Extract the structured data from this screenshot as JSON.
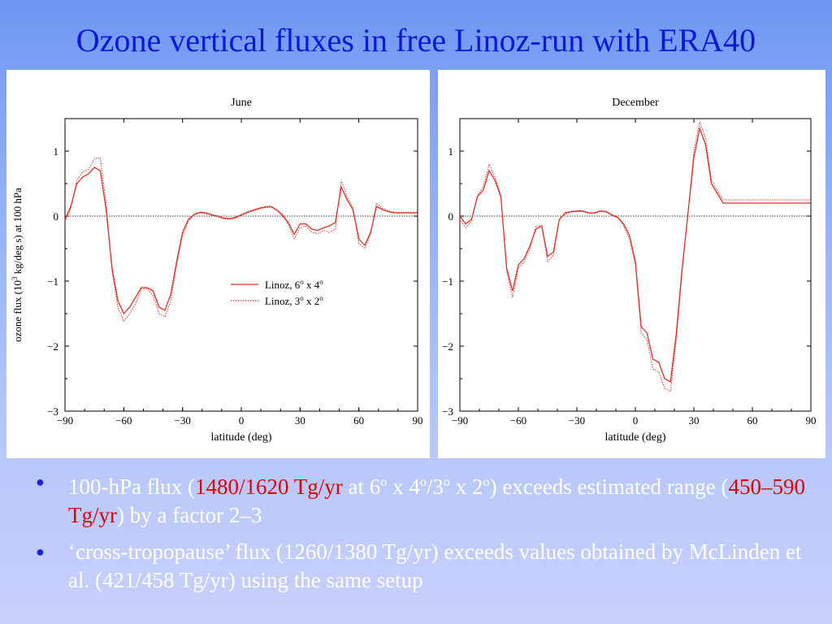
{
  "slide": {
    "title": "Ozone vertical fluxes in free Linoz-run with ERA40"
  },
  "bullets": [
    {
      "p1": "100-hPa flux (",
      "p1_red": "1480/1620 Tg/yr",
      "p2": " at 6",
      "p2_sup": "o",
      "p3": " x 4",
      "p3_sup": "o",
      "p4": "/3",
      "p4_sup": "o",
      "p5": " x 2",
      "p5_sup": "o",
      "p6": ") exceeds estimated range (",
      "p6_red": "450–590 Tg/yr",
      "p7": ") by a factor 2–3"
    },
    {
      "text": "‘cross-tropopause’ flux (1260/1380 Tg/yr) exceeds values obtained by McLinden et al. (421/458 Tg/yr) using the same setup"
    }
  ],
  "colors": {
    "title": "#0d17d8",
    "highlight": "#e00000",
    "series": "#d9342b",
    "bullet_dot": "#1a23d6"
  },
  "chart_data": [
    {
      "type": "line",
      "title": "June",
      "xlabel": "latitude (deg)",
      "ylabel_parts": {
        "a": "ozone flux (10",
        "sup": "3",
        "b": " kg/deg s) at 100 hPa"
      },
      "xlim": [
        -90,
        90
      ],
      "ylim": [
        -3,
        1.5
      ],
      "xticks": [
        -90,
        -60,
        -30,
        0,
        30,
        60,
        90
      ],
      "xtick_labels": [
        "−90",
        "−60",
        "−30",
        "0",
        "30",
        "60",
        "90"
      ],
      "yticks": [
        -3,
        -2,
        -1,
        0,
        1
      ],
      "ytick_labels": [
        "−3",
        "−2",
        "−1",
        "0",
        "1"
      ],
      "zero_line": true,
      "legend": {
        "placement": "middle-right",
        "entries": [
          {
            "base": "Linoz, 6",
            "s1": "o",
            "mid": " x 4",
            "s2": "o",
            "style": "solid"
          },
          {
            "base": "Linoz, 3",
            "s1": "o",
            "mid": " x 2",
            "s2": "o",
            "style": "dotted"
          }
        ]
      },
      "series": [
        {
          "style": "solid",
          "x": [
            -90,
            -87,
            -84,
            -81,
            -78,
            -75,
            -72,
            -69,
            -66,
            -63,
            -60,
            -57,
            -54,
            -51,
            -48,
            -45,
            -42,
            -39,
            -36,
            -33,
            -30,
            -27,
            -24,
            -21,
            -18,
            -15,
            -12,
            -9,
            -6,
            -3,
            0,
            3,
            6,
            9,
            12,
            15,
            18,
            21,
            24,
            27,
            30,
            33,
            36,
            39,
            42,
            45,
            48,
            51,
            54,
            57,
            60,
            63,
            66,
            69,
            72,
            75,
            78,
            81,
            84,
            87,
            90
          ],
          "y": [
            -0.05,
            0.15,
            0.5,
            0.6,
            0.65,
            0.75,
            0.7,
            0.1,
            -0.8,
            -1.3,
            -1.5,
            -1.4,
            -1.25,
            -1.1,
            -1.1,
            -1.15,
            -1.4,
            -1.45,
            -1.2,
            -0.7,
            -0.25,
            -0.05,
            0.03,
            0.06,
            0.05,
            0.02,
            0,
            -0.03,
            -0.04,
            -0.02,
            0.02,
            0.06,
            0.09,
            0.12,
            0.14,
            0.15,
            0.1,
            0.02,
            -0.1,
            -0.28,
            -0.12,
            -0.12,
            -0.2,
            -0.22,
            -0.18,
            -0.15,
            -0.1,
            0.45,
            0.25,
            0.1,
            -0.35,
            -0.45,
            -0.25,
            0.15,
            0.1,
            0.07,
            0.05,
            0.05,
            0.05,
            0.05,
            0.05
          ]
        },
        {
          "style": "dotted",
          "x": [
            -90,
            -87,
            -84,
            -81,
            -78,
            -75,
            -72,
            -69,
            -66,
            -63,
            -60,
            -57,
            -54,
            -51,
            -48,
            -45,
            -42,
            -39,
            -36,
            -33,
            -30,
            -27,
            -24,
            -21,
            -18,
            -15,
            -12,
            -9,
            -6,
            -3,
            0,
            3,
            6,
            9,
            12,
            15,
            18,
            21,
            24,
            27,
            30,
            33,
            36,
            39,
            42,
            45,
            48,
            51,
            54,
            57,
            60,
            63,
            66,
            69,
            72,
            75,
            78,
            81,
            84,
            87,
            90
          ],
          "y": [
            -0.08,
            0.12,
            0.55,
            0.68,
            0.72,
            0.88,
            0.9,
            0.2,
            -0.85,
            -1.4,
            -1.62,
            -1.5,
            -1.35,
            -1.12,
            -1.12,
            -1.22,
            -1.5,
            -1.55,
            -1.3,
            -0.75,
            -0.3,
            -0.08,
            0.02,
            0.05,
            0.04,
            0.01,
            -0.01,
            -0.04,
            -0.05,
            -0.03,
            0.01,
            0.05,
            0.08,
            0.11,
            0.13,
            0.14,
            0.09,
            0,
            -0.13,
            -0.35,
            -0.18,
            -0.15,
            -0.25,
            -0.27,
            -0.22,
            -0.25,
            -0.2,
            0.55,
            0.3,
            0.12,
            -0.42,
            -0.5,
            -0.28,
            0.2,
            0.12,
            0.08,
            0.06,
            0.06,
            0.06,
            0.06,
            0.06
          ]
        }
      ]
    },
    {
      "type": "line",
      "title": "December",
      "xlabel": "latitude (deg)",
      "xlim": [
        -90,
        90
      ],
      "ylim": [
        -3,
        1.5
      ],
      "xticks": [
        -90,
        -60,
        -30,
        0,
        30,
        60,
        90
      ],
      "xtick_labels": [
        "−90",
        "−60",
        "−30",
        "0",
        "30",
        "60",
        "90"
      ],
      "yticks": [
        -3,
        -2,
        -1,
        0,
        1
      ],
      "ytick_labels": [
        "−3",
        "−2",
        "−1",
        "0",
        "1"
      ],
      "zero_line": true,
      "series": [
        {
          "style": "solid",
          "x": [
            -90,
            -87,
            -84,
            -81,
            -78,
            -75,
            -72,
            -69,
            -66,
            -63,
            -60,
            -57,
            -54,
            -51,
            -48,
            -45,
            -42,
            -39,
            -36,
            -33,
            -30,
            -27,
            -24,
            -21,
            -18,
            -15,
            -12,
            -9,
            -6,
            -3,
            0,
            3,
            6,
            9,
            12,
            15,
            18,
            21,
            24,
            27,
            30,
            33,
            36,
            39,
            42,
            45,
            48,
            51,
            54,
            57,
            60,
            63,
            66,
            69,
            72,
            75,
            78,
            81,
            84,
            87,
            90
          ],
          "y": [
            0,
            -0.12,
            -0.05,
            0.3,
            0.4,
            0.7,
            0.55,
            0.3,
            -0.8,
            -1.15,
            -0.75,
            -0.65,
            -0.45,
            -0.2,
            -0.15,
            -0.62,
            -0.55,
            -0.05,
            0.05,
            0.07,
            0.08,
            0.08,
            0.05,
            0.05,
            0.08,
            0.07,
            0.02,
            -0.02,
            -0.12,
            -0.3,
            -0.7,
            -1.7,
            -1.8,
            -2.2,
            -2.25,
            -2.5,
            -2.55,
            -1.8,
            -0.8,
            0.05,
            0.9,
            1.35,
            1.1,
            0.5,
            0.35,
            0.2,
            0.2,
            0.2,
            0.2,
            0.2,
            0.2,
            0.2,
            0.2,
            0.2,
            0.2,
            0.2,
            0.2,
            0.2,
            0.2,
            0.2,
            0.2
          ]
        },
        {
          "style": "dotted",
          "x": [
            -90,
            -87,
            -84,
            -81,
            -78,
            -75,
            -72,
            -69,
            -66,
            -63,
            -60,
            -57,
            -54,
            -51,
            -48,
            -45,
            -42,
            -39,
            -36,
            -33,
            -30,
            -27,
            -24,
            -21,
            -18,
            -15,
            -12,
            -9,
            -6,
            -3,
            0,
            3,
            6,
            9,
            12,
            15,
            18,
            21,
            24,
            27,
            30,
            33,
            36,
            39,
            42,
            45,
            48,
            51,
            54,
            57,
            60,
            63,
            66,
            69,
            72,
            75,
            78,
            81,
            84,
            87,
            90
          ],
          "y": [
            -0.05,
            -0.18,
            -0.08,
            0.32,
            0.45,
            0.8,
            0.6,
            0.32,
            -0.85,
            -1.25,
            -0.8,
            -0.7,
            -0.5,
            -0.15,
            -0.15,
            -0.7,
            -0.6,
            -0.05,
            0.03,
            0.06,
            0.07,
            0.07,
            0.04,
            0.04,
            0.07,
            0.06,
            0.01,
            -0.03,
            -0.15,
            -0.35,
            -0.75,
            -1.8,
            -1.9,
            -2.35,
            -2.4,
            -2.65,
            -2.7,
            -1.9,
            -0.85,
            0.05,
            1.0,
            1.45,
            1.2,
            0.55,
            0.4,
            0.25,
            0.25,
            0.25,
            0.25,
            0.25,
            0.25,
            0.25,
            0.25,
            0.25,
            0.25,
            0.25,
            0.25,
            0.25,
            0.25,
            0.25,
            0.25
          ]
        }
      ]
    }
  ]
}
